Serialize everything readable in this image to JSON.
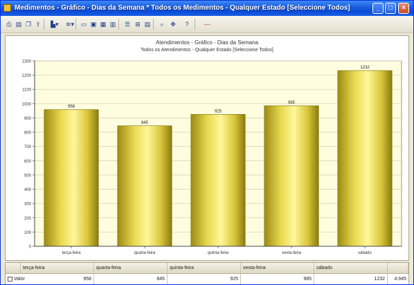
{
  "window": {
    "title": "Medimentos - Gráfico - Dias da Semana * Todos os Medimentos - Qualquer Estado [Seleccione Todos]",
    "icon": "app-icon"
  },
  "toolbar": {
    "items": [
      {
        "name": "print-icon",
        "glyph": "⎙"
      },
      {
        "name": "print-preview-icon",
        "glyph": "▤"
      },
      {
        "name": "copy-icon",
        "glyph": "❐"
      },
      {
        "name": "export-icon",
        "glyph": "⇪"
      },
      {
        "name": "bar-chart-type-icon",
        "glyph": "▙▾"
      },
      {
        "name": "series-icon",
        "glyph": "≋▾"
      },
      {
        "name": "view-2d-icon",
        "glyph": "▭"
      },
      {
        "name": "view-3d-icon",
        "glyph": "▣"
      },
      {
        "name": "grid-icon",
        "glyph": "▦"
      },
      {
        "name": "table-icon",
        "glyph": "▥"
      },
      {
        "name": "legend-icon",
        "glyph": "☰"
      },
      {
        "name": "values-icon",
        "glyph": "⊞"
      },
      {
        "name": "labels-icon",
        "glyph": "▤"
      },
      {
        "name": "zoom-icon",
        "glyph": "⌕"
      },
      {
        "name": "pan-icon",
        "glyph": "✥"
      },
      {
        "name": "help-icon",
        "glyph": "?"
      },
      {
        "name": "close-chart-icon",
        "glyph": "—"
      }
    ]
  },
  "chart_data": {
    "type": "bar",
    "title": "Atendimentos - Gráfico - Dias da Semana",
    "subtitle": "Todos os Atendimentos - Qualquer Estado [Seleccione Todos]",
    "categories": [
      "terça-feira",
      "quarta-feira",
      "quinta-feira",
      "sexta-feira",
      "sábado"
    ],
    "values": [
      958,
      845,
      925,
      985,
      1232
    ],
    "value_labels": [
      "958",
      "845",
      "925",
      "985",
      "1232"
    ],
    "ylim": [
      0,
      1300
    ],
    "yticks": [
      "0",
      "100",
      "200",
      "300",
      "400",
      "500",
      "600",
      "700",
      "800",
      "900",
      "1000",
      "1100",
      "1200",
      "1300"
    ],
    "grid": true,
    "bar_color": "#e3d24a",
    "plot_background": "#fffde0"
  },
  "table": {
    "headers": [
      "",
      "terça-feira",
      "quarta-feira",
      "quinta-feira",
      "sexta-feira",
      "sábado",
      ""
    ],
    "row_label": "Valor",
    "values": [
      "958",
      "845",
      "925",
      "985",
      "1232"
    ],
    "total": "4.945"
  }
}
